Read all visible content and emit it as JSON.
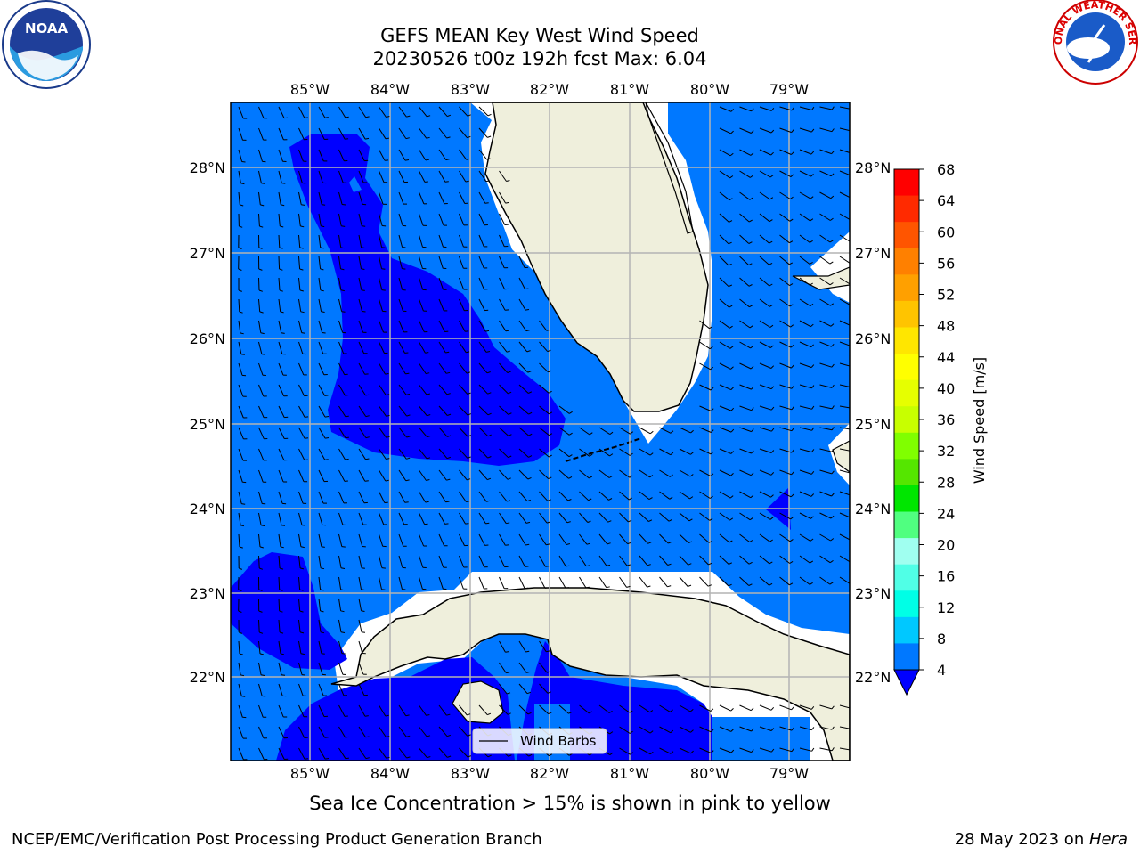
{
  "title_line1": "GEFS MEAN Key West Wind Speed",
  "title_line2": "20230526 t00z 192h fcst   Max: 6.04",
  "lon_ticks": [
    "85°W",
    "84°W",
    "83°W",
    "82°W",
    "81°W",
    "80°W",
    "79°W"
  ],
  "lat_ticks": [
    "28°N",
    "27°N",
    "26°N",
    "25°N",
    "24°N",
    "23°N",
    "22°N"
  ],
  "colorbar": {
    "label": "Wind Speed [m/s]",
    "ticks": [
      "68",
      "64",
      "60",
      "56",
      "52",
      "48",
      "44",
      "40",
      "36",
      "32",
      "28",
      "24",
      "20",
      "16",
      "12",
      "8",
      "4"
    ],
    "colors": [
      "#ff0000",
      "#ff2a00",
      "#ff5500",
      "#ff8000",
      "#ffa000",
      "#ffc400",
      "#ffe600",
      "#ffff00",
      "#e6ff00",
      "#c8ff00",
      "#80ff00",
      "#55e600",
      "#00e600",
      "#50ff80",
      "#a0fff0",
      "#50ffe6",
      "#00ffe6",
      "#00c8ff",
      "#0078ff"
    ],
    "extend_color": "#0000ff"
  },
  "legend_label": "Wind Barbs",
  "subtitle": "Sea Ice Concentration > 15% is shown in pink to yellow",
  "footer_left": "NCEP/EMC/Verification Post Processing Product Generation Branch",
  "footer_right_date": "28 May 2023 on ",
  "footer_right_host": "Hera",
  "logos": {
    "left": "NOAA",
    "right_text": "NATIONAL WEATHER SERVICE"
  },
  "colors": {
    "wind_band_4_8": "#0078ff",
    "wind_below_4": "#0000ff",
    "land": "#efefdc",
    "grid": "#b4b4b4"
  }
}
